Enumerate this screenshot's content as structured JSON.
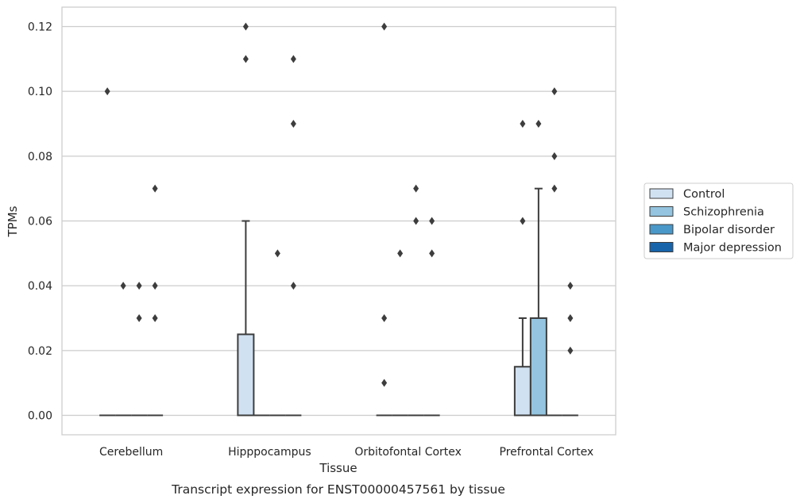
{
  "chart_data": {
    "type": "box",
    "caption": "Transcript expression for ENST00000457561 by tissue",
    "xlabel": "Tissue",
    "ylabel": "TPMs",
    "ylim": [
      -0.006,
      0.126
    ],
    "yticks": [
      0.0,
      0.02,
      0.04,
      0.06,
      0.08,
      0.1,
      0.12
    ],
    "ytick_labels": [
      "0.00",
      "0.02",
      "0.04",
      "0.06",
      "0.08",
      "0.10",
      "0.12"
    ],
    "grid": "horizontal",
    "legend_position": "right",
    "categories": [
      "Cerebellum",
      "Hipppocampus",
      "Orbitofontal Cortex",
      "Prefrontal Cortex"
    ],
    "series": [
      {
        "name": "Control",
        "color": "#d0e1f2",
        "boxes": [
          {
            "q1": 0,
            "median": 0,
            "q3": 0,
            "whisker_low": 0,
            "whisker_high": 0,
            "outliers": [
              0.1
            ]
          },
          {
            "q1": 0,
            "median": 0,
            "q3": 0.025,
            "whisker_low": 0,
            "whisker_high": 0.06,
            "outliers": [
              0.11,
              0.12
            ]
          },
          {
            "q1": 0,
            "median": 0,
            "q3": 0,
            "whisker_low": 0,
            "whisker_high": 0,
            "outliers": [
              0.01,
              0.03,
              0.12
            ]
          },
          {
            "q1": 0,
            "median": 0,
            "q3": 0.015,
            "whisker_low": 0,
            "whisker_high": 0.03,
            "outliers": [
              0.06,
              0.09
            ]
          }
        ]
      },
      {
        "name": "Schizophrenia",
        "color": "#94c4df",
        "boxes": [
          {
            "q1": 0,
            "median": 0,
            "q3": 0,
            "whisker_low": 0,
            "whisker_high": 0,
            "outliers": [
              0.04
            ]
          },
          {
            "q1": 0,
            "median": 0,
            "q3": 0,
            "whisker_low": 0,
            "whisker_high": 0,
            "outliers": []
          },
          {
            "q1": 0,
            "median": 0,
            "q3": 0,
            "whisker_low": 0,
            "whisker_high": 0,
            "outliers": [
              0.05
            ]
          },
          {
            "q1": 0,
            "median": 0,
            "q3": 0.03,
            "whisker_low": 0,
            "whisker_high": 0.07,
            "outliers": [
              0.09
            ]
          }
        ]
      },
      {
        "name": "Bipolar disorder",
        "color": "#4a98c9",
        "boxes": [
          {
            "q1": 0,
            "median": 0,
            "q3": 0,
            "whisker_low": 0,
            "whisker_high": 0,
            "outliers": [
              0.03,
              0.04
            ]
          },
          {
            "q1": 0,
            "median": 0,
            "q3": 0,
            "whisker_low": 0,
            "whisker_high": 0,
            "outliers": [
              0.05
            ]
          },
          {
            "q1": 0,
            "median": 0,
            "q3": 0,
            "whisker_low": 0,
            "whisker_high": 0,
            "outliers": [
              0.06,
              0.07
            ]
          },
          {
            "q1": 0,
            "median": 0,
            "q3": 0,
            "whisker_low": 0,
            "whisker_high": 0,
            "outliers": [
              0.07,
              0.08,
              0.1
            ]
          }
        ]
      },
      {
        "name": "Major depression",
        "color": "#1764ab",
        "boxes": [
          {
            "q1": 0,
            "median": 0,
            "q3": 0,
            "whisker_low": 0,
            "whisker_high": 0,
            "outliers": [
              0.03,
              0.04,
              0.07
            ]
          },
          {
            "q1": 0,
            "median": 0,
            "q3": 0,
            "whisker_low": 0,
            "whisker_high": 0,
            "outliers": [
              0.04,
              0.09,
              0.11
            ]
          },
          {
            "q1": 0,
            "median": 0,
            "q3": 0,
            "whisker_low": 0,
            "whisker_high": 0,
            "outliers": [
              0.05,
              0.06
            ]
          },
          {
            "q1": 0,
            "median": 0,
            "q3": 0,
            "whisker_low": 0,
            "whisker_high": 0,
            "outliers": [
              0.02,
              0.03,
              0.04
            ]
          }
        ]
      }
    ]
  }
}
